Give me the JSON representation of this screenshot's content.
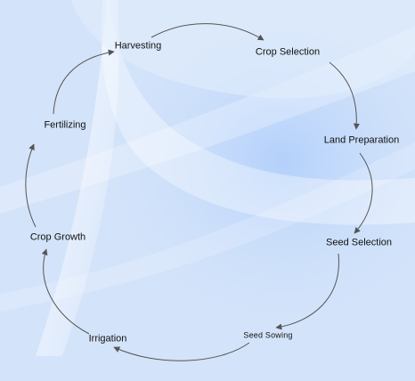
{
  "diagram": {
    "type": "cycle",
    "nodes": [
      {
        "label": "Crop Selection"
      },
      {
        "label": "Land Preparation"
      },
      {
        "label": "Seed Selection"
      },
      {
        "label": "Seed Sowing"
      },
      {
        "label": "Irrigation"
      },
      {
        "label": "Crop Growth"
      },
      {
        "label": "Fertilizing"
      },
      {
        "label": "Harvesting"
      }
    ],
    "edges": [
      {
        "from": "Crop Selection",
        "to": "Land Preparation"
      },
      {
        "from": "Land Preparation",
        "to": "Seed Selection"
      },
      {
        "from": "Seed Selection",
        "to": "Seed Sowing"
      },
      {
        "from": "Seed Sowing",
        "to": "Irrigation"
      },
      {
        "from": "Irrigation",
        "to": "Crop Growth"
      },
      {
        "from": "Crop Growth",
        "to": "Fertilizing"
      },
      {
        "from": "Fertilizing",
        "to": "Harvesting"
      },
      {
        "from": "Harvesting",
        "to": "Crop Selection"
      }
    ]
  },
  "colors": {
    "background": "#d6e6fb",
    "arrow": "#555555",
    "text": "#111111"
  }
}
